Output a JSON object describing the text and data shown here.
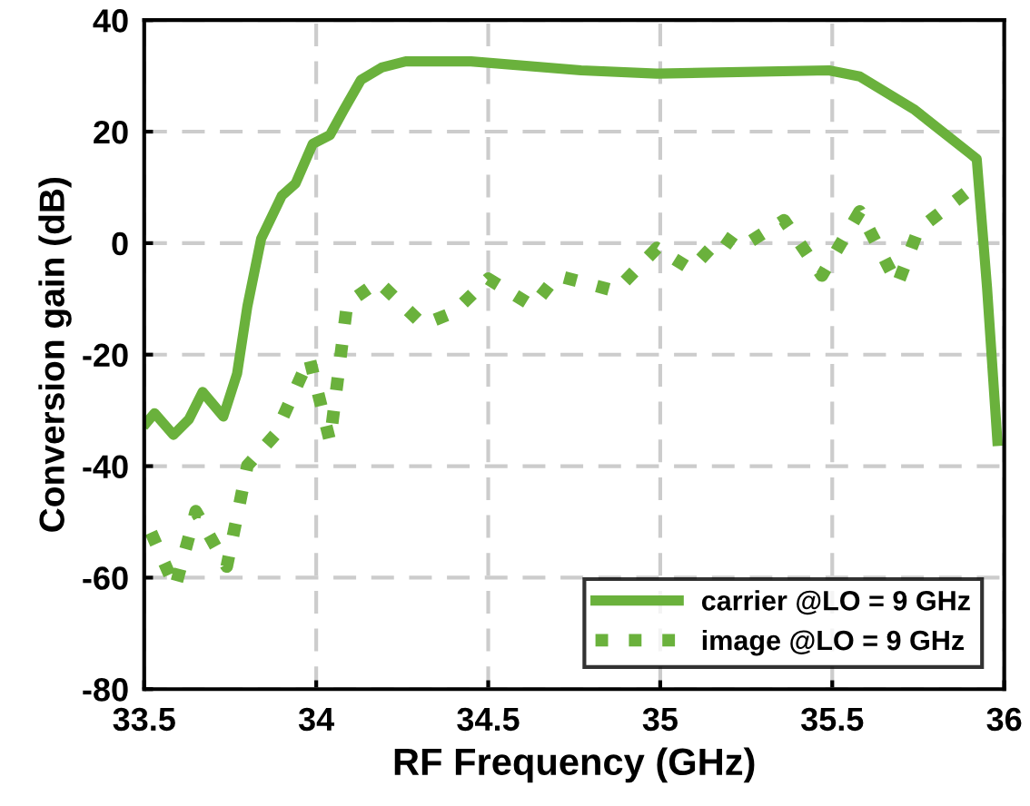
{
  "chart_data": {
    "type": "line",
    "xlabel": "RF Frequency (GHz)",
    "ylabel": "Conversion gain (dB)",
    "xlim": [
      33.5,
      36
    ],
    "xticks": [
      33.5,
      34,
      34.5,
      35,
      35.5,
      36
    ],
    "ylim": [
      -80,
      40
    ],
    "yticks": [
      -80,
      -60,
      -40,
      -20,
      0,
      20,
      40
    ],
    "grid": true,
    "legend": "bottom right",
    "series": [
      {
        "name": "carrier @LO = 9 GHz",
        "color": "#6ab13c",
        "line_style": "solid",
        "x": [
          33.507,
          33.53,
          33.585,
          33.63,
          33.67,
          33.73,
          33.77,
          33.8,
          33.84,
          33.9,
          33.94,
          33.99,
          34.04,
          34.08,
          34.13,
          34.19,
          34.26,
          34.45,
          34.77,
          34.99,
          35.49,
          35.58,
          35.74,
          35.9,
          35.92,
          35.95,
          35.98
        ],
        "values": [
          -32.2,
          -30.5,
          -34.4,
          -31.6,
          -26.7,
          -31.1,
          -23.4,
          -11.3,
          0.8,
          8.5,
          10.7,
          17.8,
          19.4,
          23.9,
          29.3,
          31.5,
          32.6,
          32.6,
          31.0,
          30.4,
          31.0,
          29.9,
          23.9,
          16.1,
          15.1,
          -8.0,
          -35.5
        ]
      },
      {
        "name": "image @LO = 9 GHz",
        "color": "#6ab13c",
        "line_style": "dotted",
        "x": [
          33.52,
          33.59,
          33.65,
          33.74,
          33.8,
          33.88,
          33.98,
          34.04,
          34.09,
          34.18,
          34.31,
          34.4,
          34.5,
          34.63,
          34.7,
          34.87,
          34.99,
          35.09,
          35.18,
          35.23,
          35.36,
          35.47,
          35.58,
          35.69,
          35.75,
          35.9
        ],
        "values": [
          -51.9,
          -61.8,
          -48.1,
          -58.0,
          -39.9,
          -34.4,
          -20.6,
          -35.5,
          -10.8,
          -6.9,
          -14.6,
          -12.4,
          -6.4,
          -11.3,
          -5.8,
          -8.6,
          -0.9,
          -4.7,
          1.3,
          -0.9,
          4.1,
          -5.8,
          5.7,
          -7.4,
          2.4,
          9.6
        ]
      }
    ]
  }
}
